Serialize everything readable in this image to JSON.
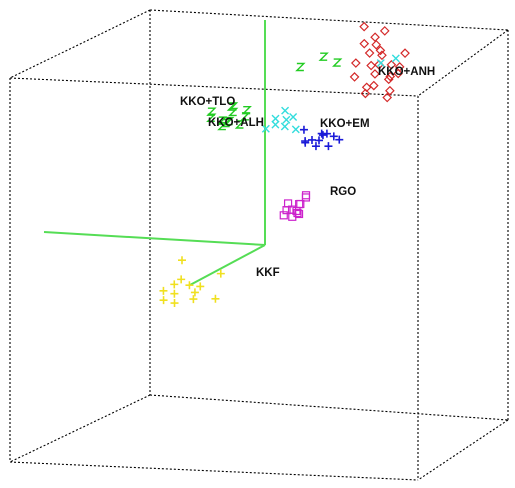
{
  "chart_data": {
    "type": "scatter",
    "projection": "3d",
    "title": "",
    "xlabel": "",
    "ylabel": "",
    "zlabel": "",
    "legend": "none",
    "grid": false,
    "series": [
      {
        "name": "KKO+ANH",
        "color": "#d42a2a",
        "marker": "diamond",
        "points": [
          [
            0.62,
            0.8,
            0.9
          ],
          [
            0.6,
            0.82,
            0.95
          ],
          [
            0.58,
            0.78,
            0.93
          ],
          [
            0.64,
            0.84,
            0.88
          ],
          [
            0.66,
            0.79,
            0.86
          ],
          [
            0.59,
            0.86,
            0.91
          ],
          [
            0.63,
            0.81,
            0.96
          ],
          [
            0.61,
            0.77,
            0.87
          ],
          [
            0.65,
            0.83,
            0.92
          ],
          [
            0.57,
            0.8,
            0.89
          ],
          [
            0.62,
            0.85,
            0.94
          ],
          [
            0.67,
            0.82,
            0.9
          ],
          [
            0.6,
            0.79,
            0.85
          ],
          [
            0.64,
            0.77,
            0.93
          ],
          [
            0.58,
            0.84,
            0.97
          ],
          [
            0.63,
            0.88,
            0.88
          ],
          [
            0.66,
            0.86,
            0.91
          ],
          [
            0.61,
            0.83,
            0.99
          ],
          [
            0.59,
            0.81,
            1.02
          ],
          [
            0.65,
            0.8,
            0.84
          ],
          [
            0.62,
            0.87,
            1.0
          ],
          [
            0.6,
            0.85,
            0.86
          ],
          [
            0.68,
            0.84,
            0.95
          ],
          [
            0.63,
            0.78,
            0.98
          ]
        ]
      },
      {
        "name": "KKO+TLO",
        "color": "#22cc22",
        "marker": "z",
        "points": [
          [
            0.28,
            0.7,
            0.78
          ],
          [
            0.3,
            0.72,
            0.8
          ],
          [
            0.26,
            0.68,
            0.79
          ],
          [
            0.32,
            0.71,
            0.77
          ],
          [
            0.29,
            0.74,
            0.81
          ],
          [
            0.27,
            0.73,
            0.76
          ],
          [
            0.31,
            0.69,
            0.82
          ],
          [
            0.33,
            0.72,
            0.79
          ],
          [
            0.25,
            0.71,
            0.8
          ],
          [
            0.3,
            0.67,
            0.78
          ],
          [
            0.28,
            0.75,
            0.77
          ],
          [
            0.34,
            0.7,
            0.81
          ],
          [
            0.42,
            0.85,
            0.9
          ],
          [
            0.46,
            0.9,
            0.92
          ],
          [
            0.5,
            0.88,
            0.91
          ]
        ]
      },
      {
        "name": "KKO+ALH",
        "color": "#33dddd",
        "marker": "x",
        "points": [
          [
            0.4,
            0.73,
            0.77
          ],
          [
            0.42,
            0.75,
            0.78
          ],
          [
            0.38,
            0.72,
            0.76
          ],
          [
            0.44,
            0.74,
            0.79
          ],
          [
            0.41,
            0.77,
            0.8
          ],
          [
            0.43,
            0.71,
            0.77
          ],
          [
            0.39,
            0.76,
            0.78
          ],
          [
            0.45,
            0.73,
            0.76
          ],
          [
            0.6,
            0.9,
            0.91
          ],
          [
            0.63,
            0.92,
            0.92
          ]
        ]
      },
      {
        "name": "KKO+EM",
        "color": "#1a1ad8",
        "marker": "plus",
        "points": [
          [
            0.5,
            0.7,
            0.74
          ],
          [
            0.52,
            0.72,
            0.75
          ],
          [
            0.48,
            0.71,
            0.73
          ],
          [
            0.54,
            0.69,
            0.76
          ],
          [
            0.51,
            0.74,
            0.75
          ],
          [
            0.49,
            0.68,
            0.74
          ],
          [
            0.53,
            0.73,
            0.72
          ],
          [
            0.55,
            0.71,
            0.75
          ],
          [
            0.47,
            0.73,
            0.76
          ],
          [
            0.52,
            0.67,
            0.73
          ],
          [
            0.56,
            0.72,
            0.74
          ],
          [
            0.5,
            0.75,
            0.73
          ]
        ]
      },
      {
        "name": "RGO",
        "color": "#cc22cc",
        "marker": "square",
        "points": [
          [
            0.52,
            0.55,
            0.6
          ],
          [
            0.53,
            0.52,
            0.58
          ],
          [
            0.51,
            0.5,
            0.61
          ],
          [
            0.54,
            0.48,
            0.59
          ],
          [
            0.52,
            0.46,
            0.6
          ],
          [
            0.53,
            0.57,
            0.62
          ],
          [
            0.51,
            0.53,
            0.57
          ],
          [
            0.54,
            0.5,
            0.61
          ],
          [
            0.52,
            0.44,
            0.59
          ],
          [
            0.53,
            0.47,
            0.6
          ],
          [
            0.51,
            0.56,
            0.58
          ],
          [
            0.54,
            0.54,
            0.62
          ]
        ]
      },
      {
        "name": "KKF",
        "color": "#f0e020",
        "marker": "plus",
        "points": [
          [
            0.3,
            0.3,
            0.4
          ],
          [
            0.33,
            0.32,
            0.42
          ],
          [
            0.28,
            0.28,
            0.41
          ],
          [
            0.35,
            0.29,
            0.39
          ],
          [
            0.31,
            0.27,
            0.43
          ],
          [
            0.27,
            0.31,
            0.38
          ],
          [
            0.34,
            0.33,
            0.4
          ],
          [
            0.36,
            0.31,
            0.42
          ],
          [
            0.29,
            0.33,
            0.37
          ],
          [
            0.32,
            0.29,
            0.44
          ],
          [
            0.4,
            0.34,
            0.45
          ],
          [
            0.25,
            0.5,
            0.45
          ],
          [
            0.38,
            0.36,
            0.38
          ]
        ]
      }
    ]
  }
}
